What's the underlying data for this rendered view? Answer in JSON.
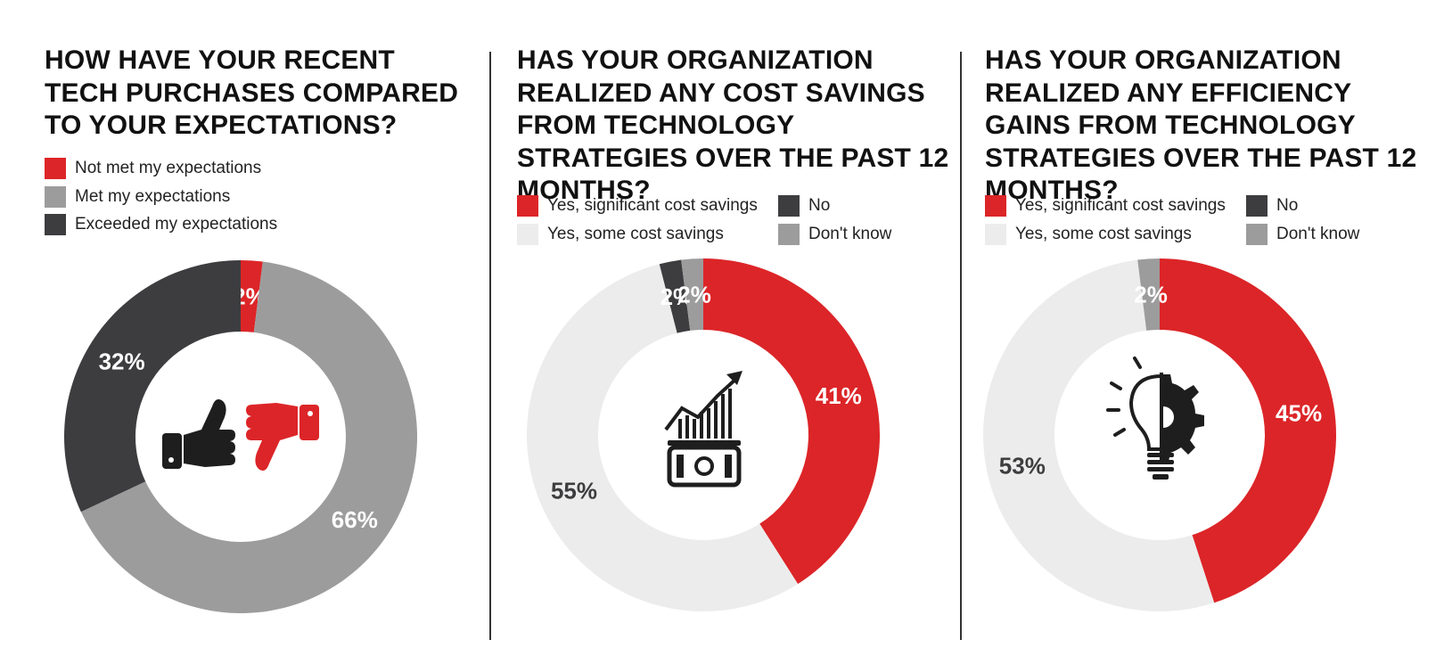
{
  "colors": {
    "red": "#dc2528",
    "mid_gray": "#9d9c9d",
    "dark_gray": "#3d3d3f",
    "light_gray": "#ececec",
    "icon_black": "#1e1e1e"
  },
  "panels": [
    {
      "title": "HOW HAVE YOUR RECENT TECH PURCHASES COMPARED TO YOUR EXPECTATIONS?",
      "legend": [
        {
          "label": "Not met my expectations",
          "color": "#dc2528"
        },
        {
          "label": "Met my expectations",
          "color": "#9d9c9d"
        },
        {
          "label": "Exceeded my expectations",
          "color": "#3d3d3f"
        }
      ],
      "center_icon": "thumbs-up-down-icon"
    },
    {
      "title": "HAS YOUR ORGANIZATION REALIZED ANY COST SAVINGS FROM TECHNOLOGY STRATEGIES OVER THE PAST 12 MONTHS?",
      "legend": [
        {
          "label": "Yes, significant cost savings",
          "color": "#dc2528"
        },
        {
          "label": "No",
          "color": "#3d3d3f"
        },
        {
          "label": "Yes, some cost savings",
          "color": "#ececec"
        },
        {
          "label": "Don't know",
          "color": "#9d9c9d"
        }
      ],
      "center_icon": "growth-chart-money-icon"
    },
    {
      "title": "HAS YOUR ORGANIZATION REALIZED ANY EFFICIENCY GAINS FROM TECHNOLOGY STRATEGIES OVER THE PAST 12 MONTHS?",
      "legend": [
        {
          "label": "Yes, significant cost savings",
          "color": "#dc2528"
        },
        {
          "label": "No",
          "color": "#3d3d3f"
        },
        {
          "label": "Yes, some cost savings",
          "color": "#ececec"
        },
        {
          "label": "Don't know",
          "color": "#9d9c9d"
        }
      ],
      "center_icon": "lightbulb-gear-icon"
    }
  ],
  "chart_data": [
    {
      "type": "pie",
      "title": "HOW HAVE YOUR RECENT TECH PURCHASES COMPARED TO YOUR EXPECTATIONS?",
      "categories": [
        "Not met my expectations",
        "Met my expectations",
        "Exceeded my expectations"
      ],
      "values": [
        2,
        66,
        32
      ],
      "labels": [
        "2%",
        "66%",
        "32%"
      ],
      "colors": [
        "#dc2528",
        "#9d9c9d",
        "#3d3d3f"
      ],
      "label_colors": [
        "#ffffff",
        "#ffffff",
        "#ffffff"
      ],
      "legend_position": "top"
    },
    {
      "type": "pie",
      "title": "HAS YOUR ORGANIZATION REALIZED ANY COST SAVINGS FROM TECHNOLOGY STRATEGIES OVER THE PAST 12 MONTHS?",
      "categories": [
        "Yes, significant cost savings",
        "Yes, some cost savings",
        "No",
        "Don't know"
      ],
      "values": [
        41,
        55,
        2,
        2
      ],
      "labels": [
        "41%",
        "55%",
        "2%",
        "2%"
      ],
      "colors": [
        "#dc2528",
        "#ececec",
        "#3d3d3f",
        "#9d9c9d"
      ],
      "label_colors": [
        "#ffffff",
        "#3d3d3f",
        "#ffffff",
        "#ffffff"
      ],
      "legend_position": "top"
    },
    {
      "type": "pie",
      "title": "HAS YOUR ORGANIZATION REALIZED ANY EFFICIENCY GAINS FROM TECHNOLOGY STRATEGIES OVER THE PAST 12 MONTHS?",
      "categories": [
        "Yes, significant cost savings",
        "Yes, some cost savings",
        "Don't know"
      ],
      "values": [
        45,
        53,
        2
      ],
      "labels": [
        "45%",
        "53%",
        "2%"
      ],
      "colors": [
        "#dc2528",
        "#ececec",
        "#9d9c9d"
      ],
      "label_colors": [
        "#ffffff",
        "#3d3d3f",
        "#ffffff"
      ],
      "legend_position": "top"
    }
  ]
}
